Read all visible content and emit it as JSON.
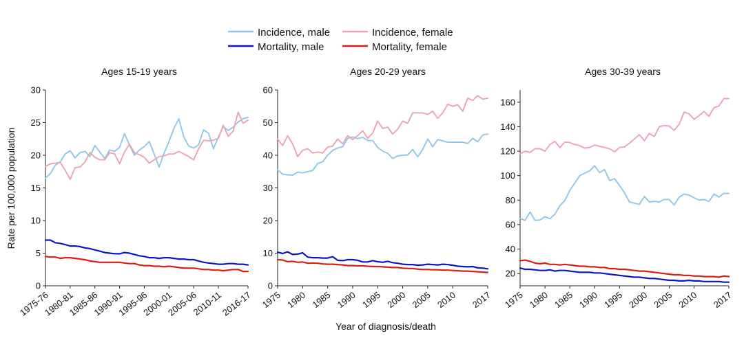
{
  "colors": {
    "incidence_male": "#8ec7e8",
    "incidence_female": "#eca3b4",
    "mortality_male": "#0b16c4",
    "mortality_female": "#dd1d14",
    "axis": "#222222"
  },
  "legend": [
    {
      "key": "incidence_male",
      "label": "Incidence, male"
    },
    {
      "key": "incidence_female",
      "label": "Incidence, female"
    },
    {
      "key": "mortality_male",
      "label": "Mortality, male"
    },
    {
      "key": "mortality_female",
      "label": "Mortality, female"
    }
  ],
  "xlabel": "Year of diagnosis/death",
  "ylabel": "Rate per 100,000 population",
  "chart_data": [
    {
      "type": "line",
      "title": "Ages 15-19 years",
      "x": [
        1975.5,
        1976.5,
        1977.5,
        1978.5,
        1979.5,
        1980.5,
        1981.5,
        1982.5,
        1983.5,
        1984.5,
        1985.5,
        1986.5,
        1987.5,
        1988.5,
        1989.5,
        1990.5,
        1991.5,
        1992.5,
        1993.5,
        1994.5,
        1995.5,
        1996.5,
        1997.5,
        1998.5,
        1999.5,
        2000.5,
        2001.5,
        2002.5,
        2003.5,
        2004.5,
        2005.5,
        2006.5,
        2007.5,
        2008.5,
        2009.5,
        2010.5,
        2011.5,
        2012.5,
        2013.5,
        2014.5,
        2015.5,
        2016.5
      ],
      "xlim": [
        1975.5,
        2016.5
      ],
      "xticks": [
        1975.5,
        1980.5,
        1985.5,
        1990.5,
        1995.5,
        2000.5,
        2005.5,
        2010.5,
        2016.5
      ],
      "xticklabels": [
        "1975-76",
        "1980-81",
        "1985-86",
        "1990-91",
        "1995-96",
        "2000-01",
        "2005-06",
        "2010-11",
        "2016-17"
      ],
      "ylim": [
        0,
        30
      ],
      "yticks": [
        0,
        5,
        10,
        15,
        20,
        25,
        30
      ],
      "series": [
        {
          "key": "incidence_male",
          "name": "Incidence, male",
          "values": [
            16.5,
            17.2,
            18.5,
            19.0,
            20.2,
            20.7,
            19.6,
            20.4,
            20.6,
            19.8,
            21.5,
            20.5,
            19.5,
            20.8,
            20.6,
            21.2,
            23.3,
            21.6,
            20.0,
            20.8,
            21.3,
            22.1,
            20.2,
            18.2,
            20.3,
            22.1,
            24.1,
            25.6,
            22.8,
            21.4,
            21.1,
            21.6,
            23.9,
            23.4,
            21.0,
            22.8,
            24.4,
            23.8,
            24.3,
            25.1,
            25.6,
            25.8
          ]
        },
        {
          "key": "incidence_female",
          "name": "Incidence, female",
          "values": [
            18.3,
            18.7,
            18.8,
            18.9,
            17.7,
            16.3,
            18.1,
            18.2,
            19.0,
            20.4,
            19.7,
            19.3,
            19.3,
            20.4,
            20.2,
            18.7,
            20.5,
            21.7,
            20.4,
            20.1,
            19.7,
            18.8,
            19.3,
            19.8,
            19.9,
            20.2,
            20.2,
            20.6,
            20.2,
            19.8,
            19.3,
            21.0,
            22.3,
            22.2,
            22.3,
            22.6,
            24.6,
            22.9,
            23.7,
            26.6,
            24.9,
            25.4
          ]
        },
        {
          "key": "mortality_male",
          "name": "Mortality, male",
          "values": [
            7.0,
            7.0,
            6.6,
            6.5,
            6.3,
            6.1,
            6.1,
            6.0,
            5.8,
            5.7,
            5.5,
            5.3,
            5.1,
            5.0,
            4.9,
            4.9,
            5.1,
            5.0,
            4.8,
            4.6,
            4.5,
            4.3,
            4.3,
            4.2,
            4.3,
            4.3,
            4.2,
            4.1,
            4.1,
            4.0,
            4.0,
            3.8,
            3.6,
            3.5,
            3.4,
            3.3,
            3.3,
            3.4,
            3.4,
            3.3,
            3.3,
            3.2
          ]
        },
        {
          "key": "mortality_female",
          "name": "Mortality, female",
          "values": [
            4.5,
            4.4,
            4.4,
            4.2,
            4.3,
            4.3,
            4.2,
            4.1,
            4.0,
            3.8,
            3.7,
            3.6,
            3.6,
            3.6,
            3.6,
            3.6,
            3.5,
            3.4,
            3.4,
            3.2,
            3.1,
            3.1,
            3.0,
            3.0,
            2.9,
            3.0,
            2.9,
            2.8,
            2.7,
            2.7,
            2.7,
            2.6,
            2.5,
            2.5,
            2.4,
            2.4,
            2.3,
            2.4,
            2.5,
            2.5,
            2.2,
            2.2
          ]
        }
      ]
    },
    {
      "type": "line",
      "title": "Ages 20-29 years",
      "x": [
        1975,
        1976,
        1977,
        1978,
        1979,
        1980,
        1981,
        1982,
        1983,
        1984,
        1985,
        1986,
        1987,
        1988,
        1989,
        1990,
        1991,
        1992,
        1993,
        1994,
        1995,
        1996,
        1997,
        1998,
        1999,
        2000,
        2001,
        2002,
        2003,
        2004,
        2005,
        2006,
        2007,
        2008,
        2009,
        2010,
        2011,
        2012,
        2013,
        2014,
        2015,
        2016,
        2017
      ],
      "xlim": [
        1975,
        2017
      ],
      "xticks": [
        1975,
        1980,
        1985,
        1990,
        1995,
        2000,
        2005,
        2010,
        2017
      ],
      "xticklabels": [
        "1975",
        "1980",
        "1985",
        "1990",
        "1995",
        "2000",
        "2005",
        "2010",
        "2017"
      ],
      "ylim": [
        0,
        60
      ],
      "yticks": [
        0,
        10,
        20,
        30,
        40,
        50,
        60
      ],
      "series": [
        {
          "key": "incidence_male",
          "name": "Incidence, male",
          "values": [
            35.5,
            34.2,
            34.0,
            33.9,
            34.8,
            34.6,
            35.0,
            35.3,
            37.5,
            38.0,
            40.0,
            41.5,
            42.2,
            42.6,
            45.2,
            45.6,
            45.1,
            45.5,
            44.5,
            44.5,
            42.4,
            41.3,
            40.6,
            39.0,
            39.8,
            40.0,
            40.1,
            41.8,
            39.5,
            41.8,
            45.0,
            42.6,
            44.8,
            44.4,
            44.0,
            44.0,
            44.0,
            44.0,
            43.6,
            45.2,
            44.1,
            46.2,
            46.5
          ]
        },
        {
          "key": "incidence_female",
          "name": "Incidence, female",
          "values": [
            45.0,
            43.0,
            46.0,
            43.5,
            39.6,
            41.5,
            42.0,
            40.7,
            41.0,
            40.7,
            42.5,
            42.8,
            45.0,
            43.5,
            46.0,
            44.8,
            46.0,
            47.5,
            45.2,
            46.8,
            50.5,
            48.2,
            48.6,
            46.5,
            48.0,
            50.5,
            49.8,
            53.0,
            53.0,
            53.0,
            52.5,
            53.5,
            51.3,
            53.0,
            55.6,
            55.0,
            55.5,
            53.5,
            57.5,
            56.8,
            58.3,
            57.2,
            57.5
          ]
        },
        {
          "key": "mortality_male",
          "name": "Mortality, male",
          "values": [
            10.3,
            9.9,
            10.4,
            9.6,
            9.7,
            10.1,
            8.8,
            8.6,
            8.6,
            8.5,
            8.5,
            8.9,
            7.8,
            7.7,
            8.0,
            8.0,
            7.8,
            7.3,
            7.3,
            7.7,
            7.4,
            7.2,
            7.5,
            7.1,
            6.9,
            6.6,
            6.5,
            6.5,
            6.3,
            6.4,
            6.6,
            6.5,
            6.4,
            6.6,
            6.5,
            6.3,
            6.0,
            5.9,
            5.8,
            5.9,
            5.5,
            5.4,
            5.2
          ]
        },
        {
          "key": "mortality_female",
          "name": "Mortality, female",
          "values": [
            8.0,
            7.9,
            7.4,
            7.5,
            7.2,
            7.3,
            6.9,
            7.0,
            6.9,
            6.7,
            6.6,
            6.6,
            6.5,
            6.4,
            6.2,
            6.2,
            6.1,
            6.1,
            6.0,
            5.9,
            5.9,
            5.8,
            5.7,
            5.6,
            5.6,
            5.4,
            5.3,
            5.3,
            5.1,
            5.0,
            5.0,
            4.9,
            4.9,
            4.8,
            4.8,
            4.7,
            4.6,
            4.5,
            4.5,
            4.4,
            4.3,
            4.2,
            4.1
          ]
        }
      ]
    },
    {
      "type": "line",
      "title": "Ages 30-39 years",
      "x": [
        1975,
        1976,
        1977,
        1978,
        1979,
        1980,
        1981,
        1982,
        1983,
        1984,
        1985,
        1986,
        1987,
        1988,
        1989,
        1990,
        1991,
        1992,
        1993,
        1994,
        1995,
        1996,
        1997,
        1998,
        1999,
        2000,
        2001,
        2002,
        2003,
        2004,
        2005,
        2006,
        2007,
        2008,
        2009,
        2010,
        2011,
        2012,
        2013,
        2014,
        2015,
        2016,
        2017
      ],
      "xlim": [
        1975,
        2017
      ],
      "xticks": [
        1975,
        1980,
        1985,
        1990,
        1995,
        2000,
        2005,
        2010,
        2017
      ],
      "xticklabels": [
        "1975",
        "1980",
        "1985",
        "1990",
        "1995",
        "2000",
        "2005",
        "2010",
        "2017"
      ],
      "ylim": [
        10,
        170
      ],
      "yticks": [
        20,
        40,
        60,
        80,
        100,
        120,
        140,
        160
      ],
      "series": [
        {
          "key": "incidence_male",
          "name": "Incidence, male",
          "values": [
            65.0,
            63.5,
            70.2,
            63.5,
            63.8,
            66.5,
            64.8,
            68.5,
            75.5,
            79.5,
            88.0,
            94.0,
            100.0,
            102.0,
            104.0,
            108.0,
            102.5,
            105.0,
            96.0,
            97.5,
            92.0,
            86.0,
            78.5,
            77.5,
            76.5,
            83.0,
            78.5,
            79.0,
            78.5,
            80.5,
            80.5,
            76.0,
            82.5,
            85.0,
            84.0,
            82.0,
            80.0,
            80.5,
            79.0,
            85.0,
            82.5,
            85.5,
            85.5
          ]
        },
        {
          "key": "incidence_female",
          "name": "Incidence, female",
          "values": [
            118.0,
            120.0,
            119.0,
            122.0,
            122.0,
            120.0,
            125.5,
            128.0,
            123.0,
            127.5,
            127.0,
            125.5,
            124.5,
            122.5,
            123.0,
            125.0,
            124.0,
            123.0,
            122.0,
            119.5,
            123.0,
            123.5,
            126.5,
            130.0,
            133.5,
            128.5,
            134.5,
            132.0,
            140.0,
            141.0,
            140.5,
            137.0,
            142.0,
            152.0,
            150.5,
            146.0,
            149.0,
            152.5,
            148.5,
            155.5,
            157.0,
            163.0,
            163.0
          ]
        },
        {
          "key": "mortality_male",
          "name": "Mortality, male",
          "values": [
            24.5,
            23.5,
            23.5,
            23.0,
            22.5,
            22.5,
            23.0,
            22.0,
            22.5,
            22.5,
            22.0,
            21.5,
            21.0,
            21.0,
            21.0,
            20.5,
            20.5,
            20.0,
            19.5,
            19.0,
            18.5,
            18.0,
            17.5,
            17.0,
            17.0,
            16.5,
            16.0,
            16.0,
            15.5,
            15.0,
            14.5,
            14.5,
            14.0,
            14.0,
            14.5,
            14.0,
            14.0,
            13.5,
            13.5,
            13.5,
            13.5,
            13.0,
            13.0
          ]
        },
        {
          "key": "mortality_female",
          "name": "Mortality, female",
          "values": [
            30.5,
            31.0,
            30.0,
            28.5,
            28.0,
            28.5,
            27.5,
            27.5,
            27.0,
            27.5,
            27.0,
            26.5,
            26.0,
            26.0,
            25.5,
            25.5,
            25.0,
            25.0,
            24.0,
            24.0,
            23.5,
            23.5,
            23.0,
            22.5,
            22.0,
            22.0,
            21.5,
            21.0,
            20.5,
            20.0,
            19.5,
            19.0,
            19.0,
            18.5,
            18.5,
            18.0,
            18.0,
            17.5,
            17.5,
            17.5,
            17.0,
            18.0,
            17.5
          ]
        }
      ]
    }
  ]
}
